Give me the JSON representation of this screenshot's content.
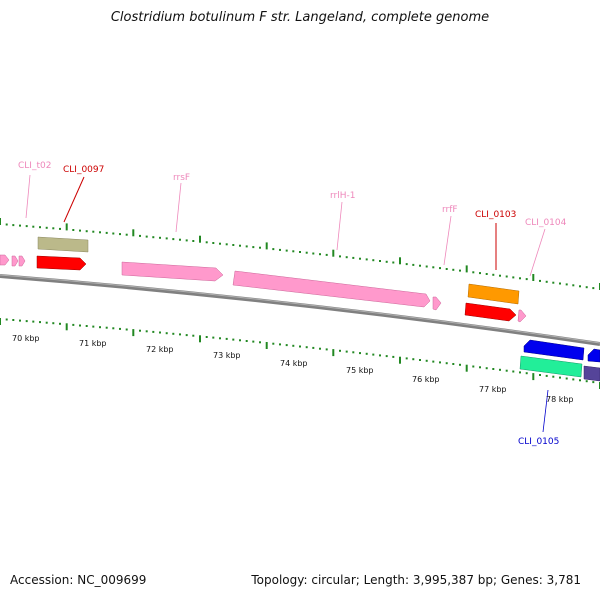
{
  "title": "Clostridium botulinum F str. Langeland, complete genome",
  "footer": {
    "accession": "Accession: NC_009699",
    "stats": "Topology: circular; Length: 3,995,387 bp; Genes: 3,781"
  },
  "scale_labels": [
    "70 kbp",
    "71 kbp",
    "72 kbp",
    "73 kbp",
    "74 kbp",
    "75 kbp",
    "76 kbp",
    "77 kbp",
    "78 kbp"
  ],
  "gene_labels": [
    {
      "text": "CLI_t02",
      "color": "#ee88bb"
    },
    {
      "text": "CLI_0097",
      "color": "#cc0000"
    },
    {
      "text": "rrsF",
      "color": "#ee88bb"
    },
    {
      "text": "rrlH-1",
      "color": "#ee88bb"
    },
    {
      "text": "rrfF",
      "color": "#ee88bb"
    },
    {
      "text": "CLI_0103",
      "color": "#cc0000"
    },
    {
      "text": "CLI_0104",
      "color": "#ee88bb"
    },
    {
      "text": "CLI_0105",
      "color": "#0000cc"
    }
  ],
  "colors": {
    "backbone": "#888888",
    "tick": "#228822",
    "rna": "#ff99cc",
    "red_gene": "#ff0000",
    "olive_gene": "#bbb98a",
    "orange_gene": "#ff9900",
    "blue_gene": "#0000ee",
    "teal_gene": "#22ee99",
    "purple_gene": "#554499"
  }
}
